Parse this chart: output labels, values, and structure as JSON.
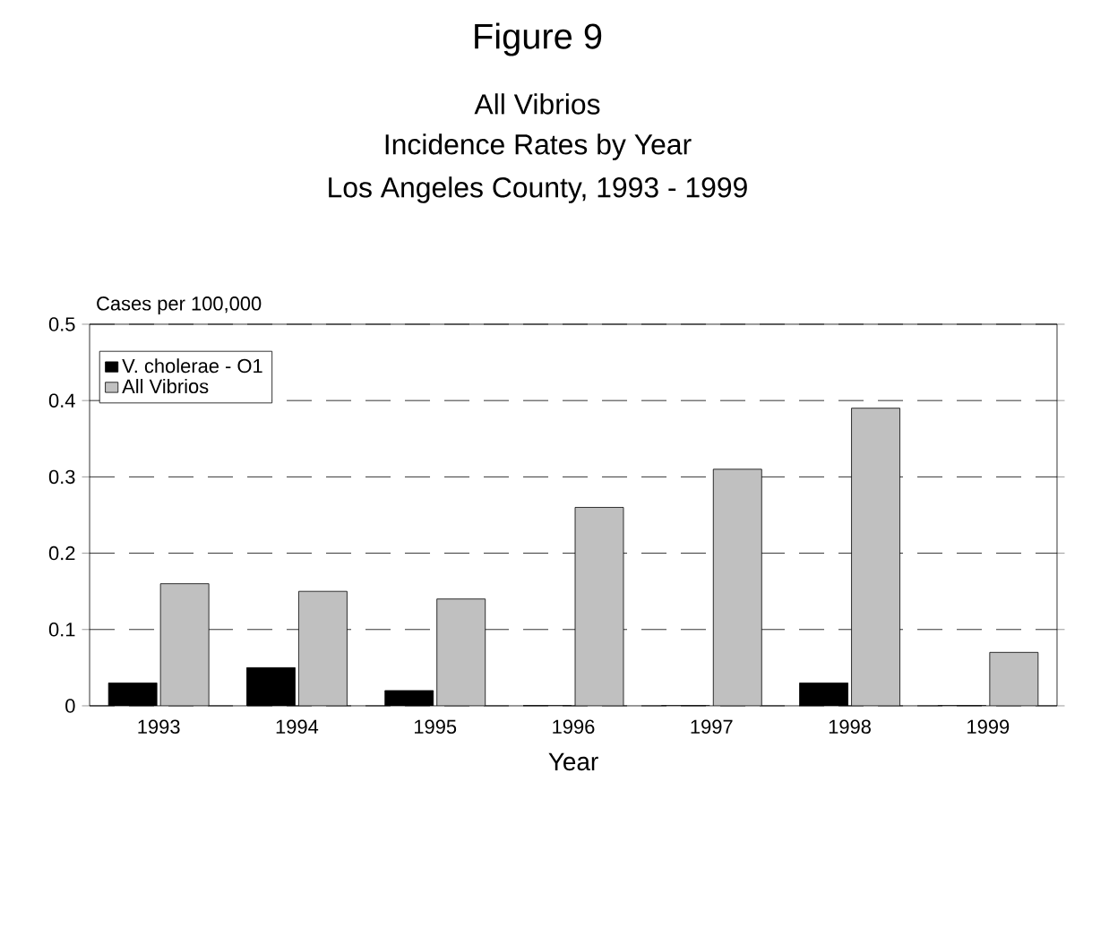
{
  "chart_data": {
    "type": "bar",
    "title": "Figure 9",
    "subtitle": "All Vibrios",
    "annotations": [
      "Incidence Rates by Year",
      "Los Angeles County, 1993 - 1999"
    ],
    "xlabel": "Year",
    "ylabel": "Cases per 100,000",
    "categories": [
      "1993",
      "1994",
      "1995",
      "1996",
      "1997",
      "1998",
      "1999"
    ],
    "series": [
      {
        "name": "V. cholerae - O1",
        "color": "#000000",
        "values": [
          0.03,
          0.05,
          0.02,
          0,
          0,
          0.03,
          0
        ]
      },
      {
        "name": "All Vibrios",
        "color": "#c0c0c0",
        "values": [
          0.16,
          0.15,
          0.14,
          0.26,
          0.31,
          0.39,
          0.07
        ]
      }
    ],
    "ylim": [
      0,
      0.5
    ],
    "yticks": [
      0,
      0.1,
      0.2,
      0.3,
      0.4,
      0.5
    ],
    "grid": "y",
    "legend": "top left"
  }
}
